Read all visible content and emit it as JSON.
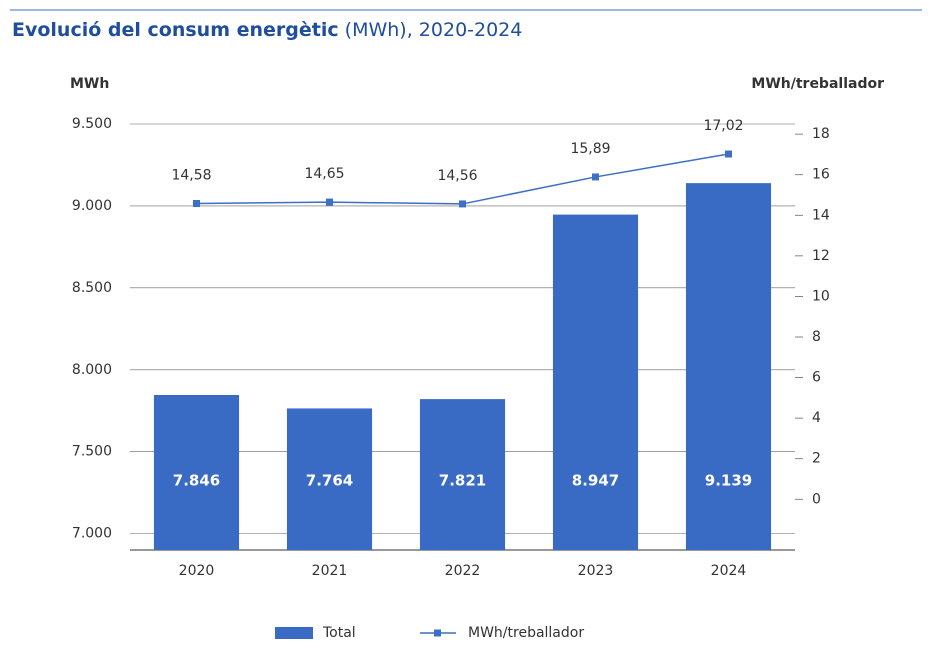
{
  "chart_data": {
    "type": "bar_line",
    "title": "Evolució del consum energètic",
    "title_suffix": "(MWh), 2020-2024",
    "ylabel": "MWh",
    "y2label": "MWh/treballador",
    "categories": [
      "2020",
      "2021",
      "2022",
      "2023",
      "2024"
    ],
    "series": [
      {
        "name": "Total",
        "type": "bar",
        "color": "#3a6bc4",
        "values": [
          7846,
          7764,
          7821,
          8947,
          9139
        ],
        "value_labels": [
          "7.846",
          "7.764",
          "7.821",
          "8.947",
          "9.139"
        ]
      },
      {
        "name": "MWh/treballador",
        "type": "line",
        "axis": "y2",
        "color": "#3c6fc6",
        "values": [
          14.58,
          14.65,
          14.56,
          15.89,
          17.02
        ],
        "value_labels": [
          "14,58",
          "14,65",
          "14,56",
          "15,89",
          "17,02"
        ]
      }
    ],
    "ylim": [
      6900,
      9500
    ],
    "yticks": [
      {
        "value": 7000,
        "label": "7.000"
      },
      {
        "value": 7500,
        "label": "7.500"
      },
      {
        "value": 8000,
        "label": "8.000"
      },
      {
        "value": 8500,
        "label": "8.500"
      },
      {
        "value": 9000,
        "label": "9.000"
      },
      {
        "value": 9500,
        "label": "9.500"
      }
    ],
    "y2lim": [
      -2.5,
      18.5
    ],
    "y2ticks": [
      0,
      2,
      4,
      6,
      8,
      10,
      12,
      14,
      16,
      18
    ],
    "grid": true
  }
}
